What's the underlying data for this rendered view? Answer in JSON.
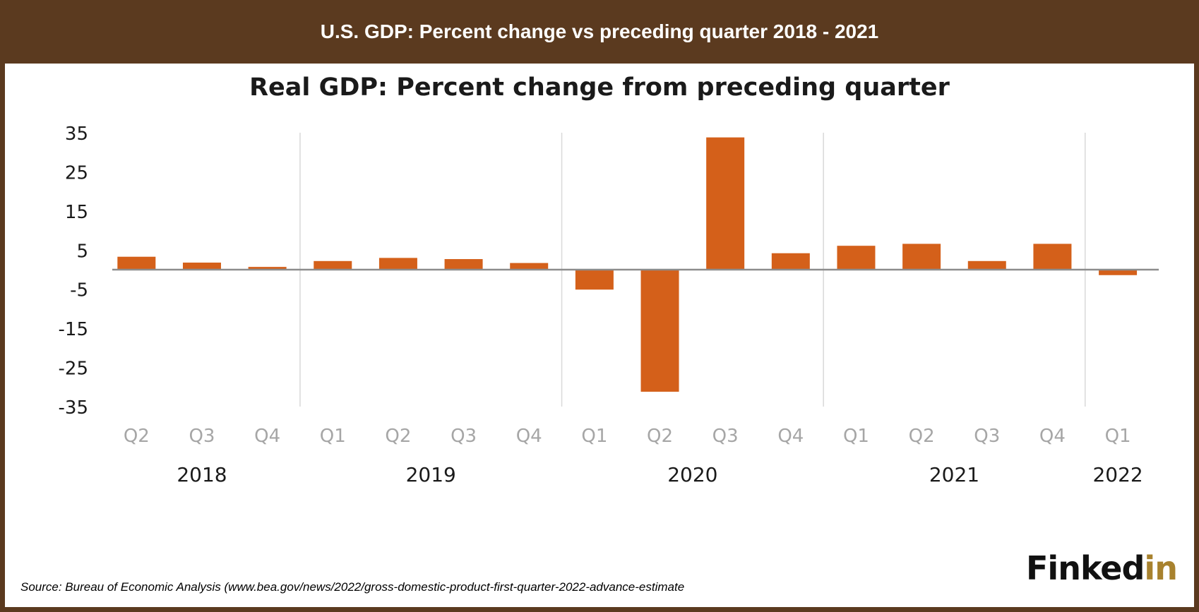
{
  "header": {
    "title": "U.S. GDP: Percent change vs preceding quarter 2018 - 2021"
  },
  "source": "Source: Bureau of Economic Analysis (www.bea.gov/news/2022/gross-domestic-product-first-quarter-2022-advance-estimate",
  "logo": {
    "part1": "Finked",
    "part2": "in"
  },
  "colors": {
    "bar": "#d4601a",
    "header_bg": "#5b3a1f",
    "quarter_label": "#a6a6a6",
    "zero_line": "#8c8c8c",
    "year_divider": "#d9d9d9",
    "logo_accent": "#a8822e"
  },
  "chart_data": {
    "type": "bar",
    "title": "Real GDP:  Percent change from preceding quarter",
    "categories": [
      "Q2",
      "Q3",
      "Q4",
      "Q1",
      "Q2",
      "Q3",
      "Q4",
      "Q1",
      "Q2",
      "Q3",
      "Q4",
      "Q1",
      "Q2",
      "Q3",
      "Q4",
      "Q1"
    ],
    "years": [
      {
        "label": "2018",
        "start": 0,
        "end": 2
      },
      {
        "label": "2019",
        "start": 3,
        "end": 6
      },
      {
        "label": "2020",
        "start": 7,
        "end": 10
      },
      {
        "label": "2021",
        "start": 11,
        "end": 14
      },
      {
        "label": "2022",
        "start": 15,
        "end": 15
      }
    ],
    "values": [
      3.3,
      1.8,
      0.7,
      2.2,
      3.0,
      2.7,
      1.7,
      -5.1,
      -31.2,
      33.8,
      4.2,
      6.1,
      6.6,
      2.2,
      6.6,
      -1.4
    ],
    "yticks": [
      35,
      25,
      15,
      5,
      -5,
      -15,
      -25,
      -35
    ],
    "ylim": [
      -35,
      35
    ],
    "grid": false,
    "legend": "none"
  }
}
